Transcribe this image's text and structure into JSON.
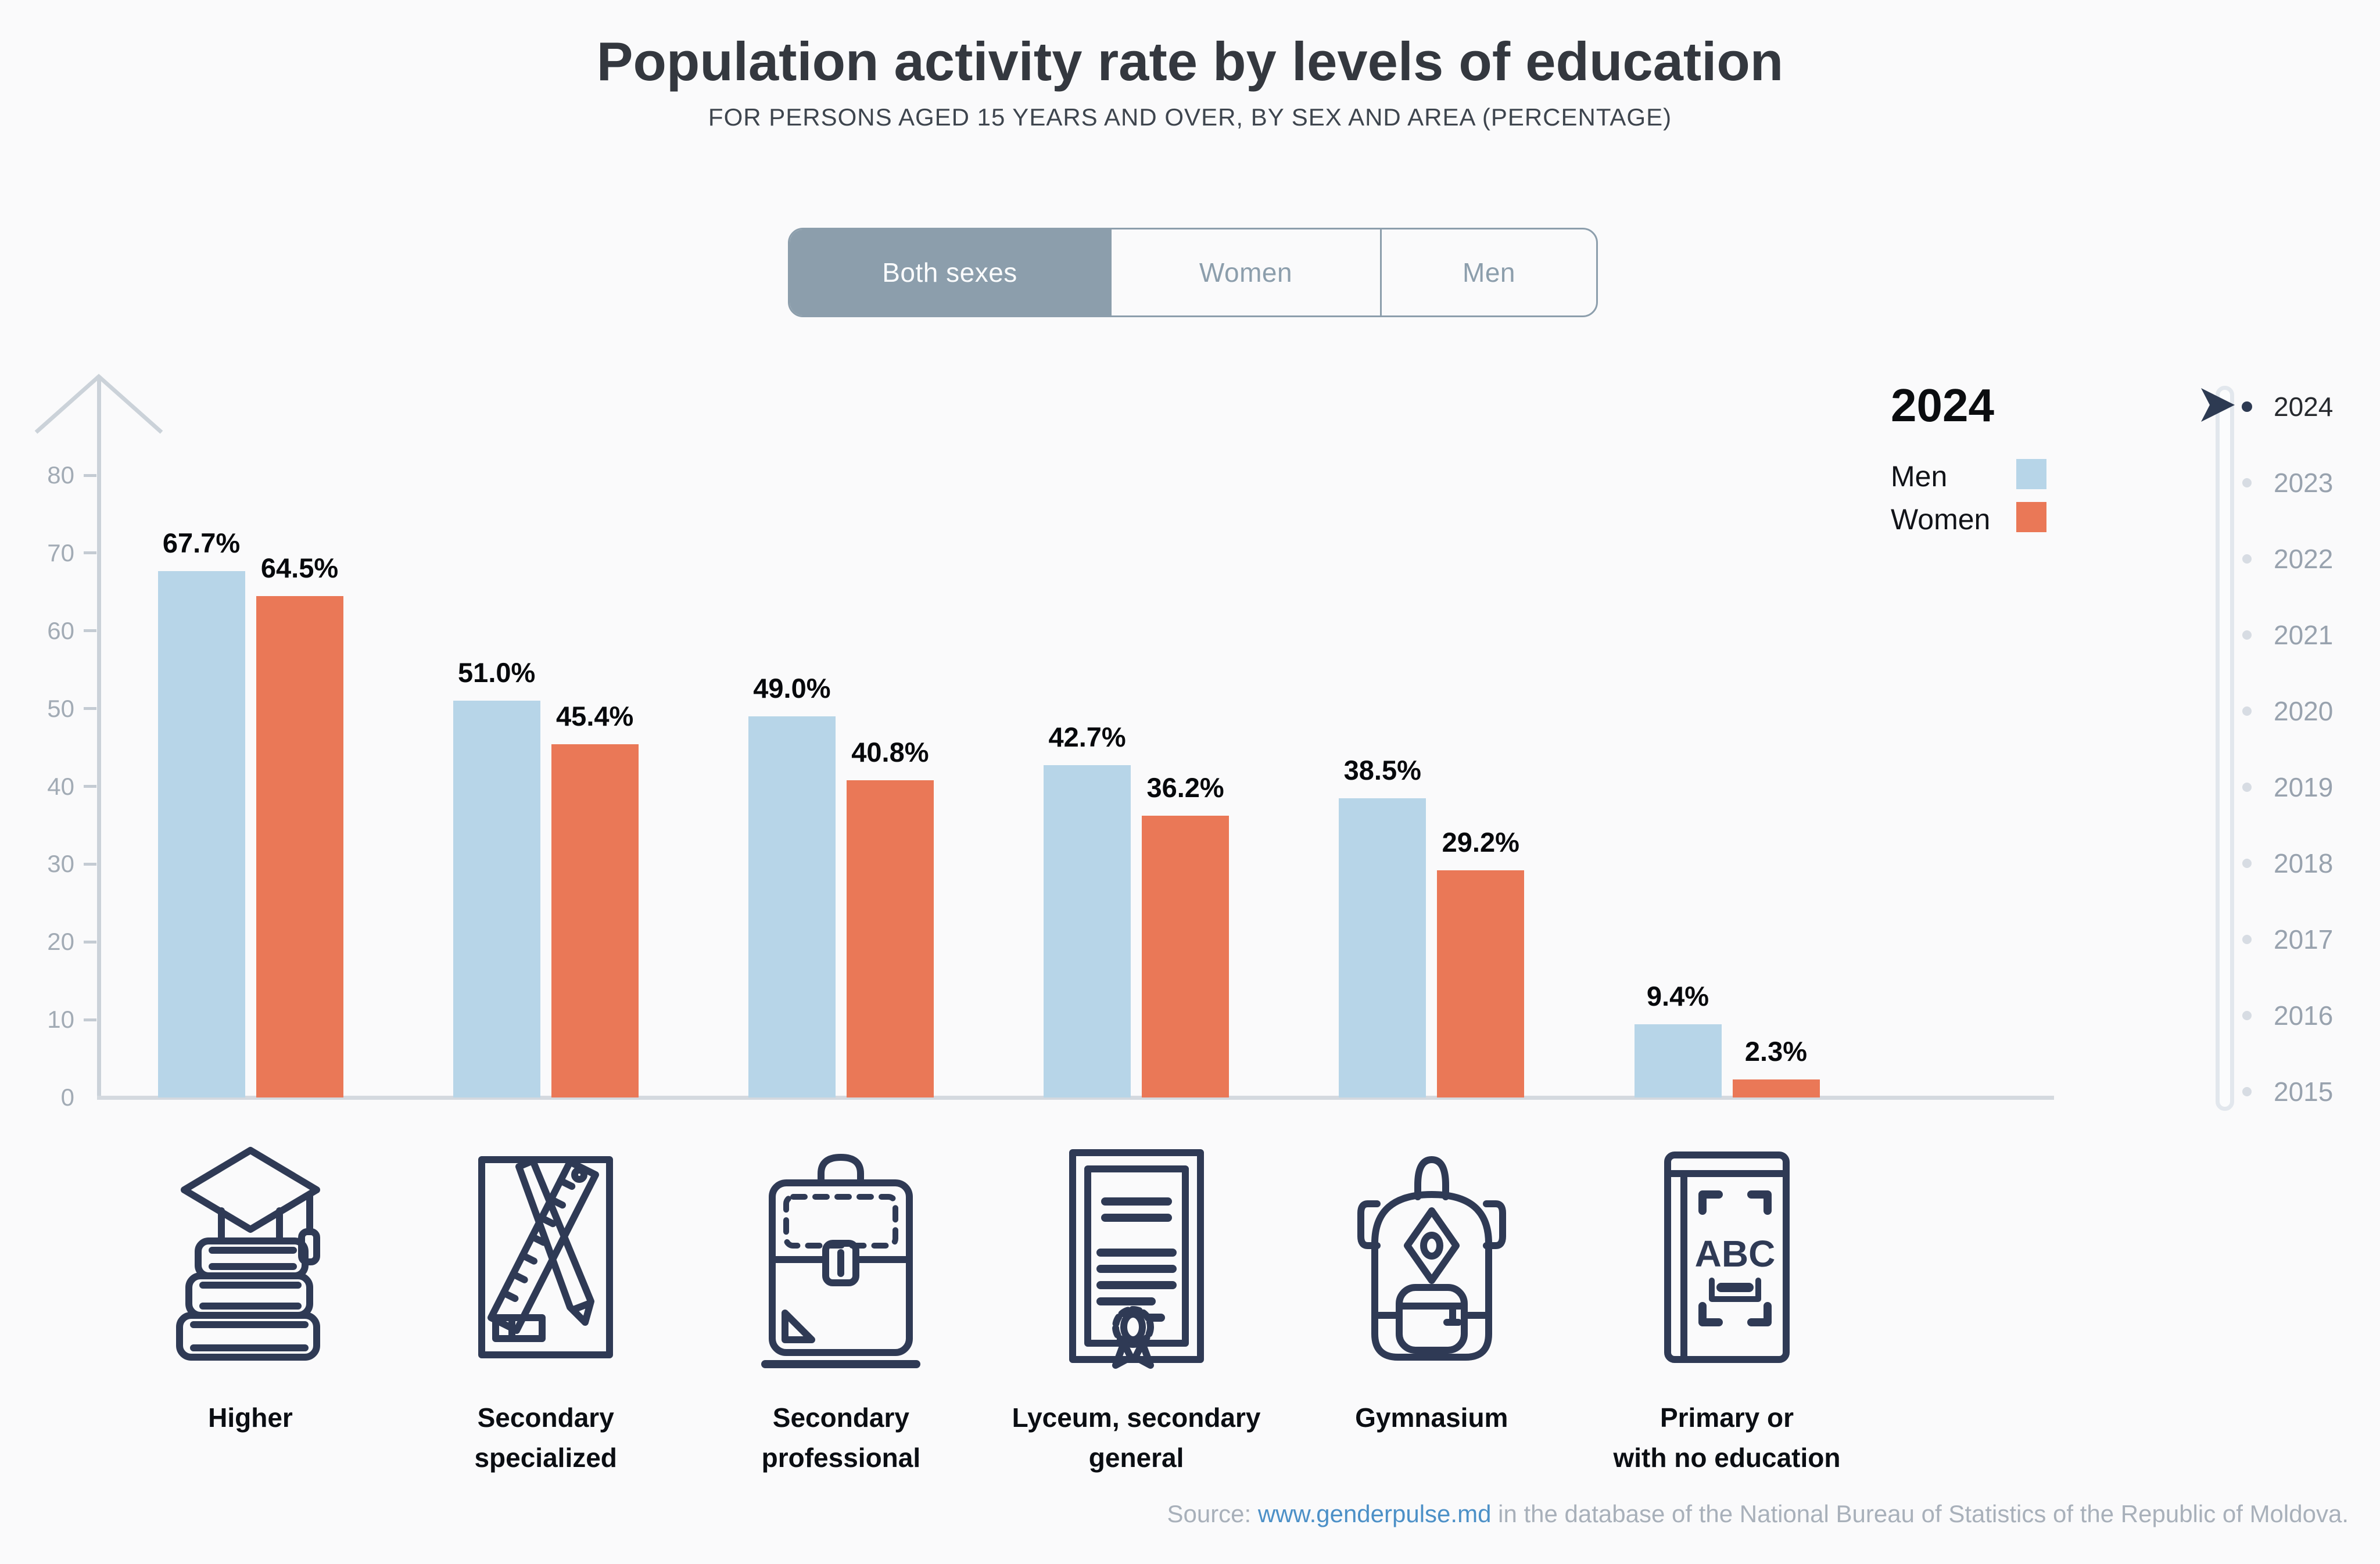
{
  "header": {
    "title": "Population activity rate by levels of education",
    "subtitle": "FOR PERSONS AGED 15 YEARS AND OVER, BY SEX AND AREA (PERCENTAGE)"
  },
  "tabs": {
    "items": [
      {
        "label": "Both sexes",
        "active": true
      },
      {
        "label": "Women",
        "active": false
      },
      {
        "label": "Men",
        "active": false
      }
    ]
  },
  "legend": {
    "year": "2024",
    "series": [
      {
        "label": "Men",
        "color": "#B7D5E8"
      },
      {
        "label": "Women",
        "color": "#EA7857"
      }
    ]
  },
  "timeline": {
    "years": [
      "2024",
      "2023",
      "2022",
      "2021",
      "2020",
      "2019",
      "2018",
      "2017",
      "2016",
      "2015"
    ],
    "active_year": "2024",
    "active_color": "#2D3A52",
    "inactive_dot_color": "#D7DCE3"
  },
  "chart_data": {
    "type": "bar",
    "title": "Population activity rate by levels of education",
    "categories": [
      "Higher",
      "Secondary specialized",
      "Secondary professional",
      "Lyceum, secondary general",
      "Gymnasium",
      "Primary or with no education"
    ],
    "category_lines": [
      [
        "Higher"
      ],
      [
        "Secondary",
        "specialized"
      ],
      [
        "Secondary",
        "professional"
      ],
      [
        "Lyceum, secondary",
        "general"
      ],
      [
        "Gymnasium"
      ],
      [
        "Primary or",
        "with no education"
      ]
    ],
    "category_icons": [
      "books-graduation-cap-icon",
      "pencil-ruler-sheet-icon",
      "briefcase-icon",
      "diploma-icon",
      "backpack-icon",
      "abc-book-icon"
    ],
    "series": [
      {
        "name": "Men",
        "color": "#B7D5E8",
        "values": [
          67.7,
          51.0,
          49.0,
          42.7,
          38.5,
          9.4
        ]
      },
      {
        "name": "Women",
        "color": "#EA7857",
        "values": [
          64.5,
          45.4,
          40.8,
          36.2,
          29.2,
          2.3
        ]
      }
    ],
    "value_suffix": "%",
    "ylabel": "",
    "xlabel": "",
    "ylim": [
      0,
      80
    ],
    "yticks": [
      0,
      10,
      20,
      30,
      40,
      50,
      60,
      70,
      80
    ],
    "grid": false,
    "legend_position": "top-right"
  },
  "source": {
    "prefix": "Source: ",
    "link": "www.genderpulse.md",
    "suffix": " in the database of the National Bureau of Statistics of the Republic of Moldova."
  }
}
